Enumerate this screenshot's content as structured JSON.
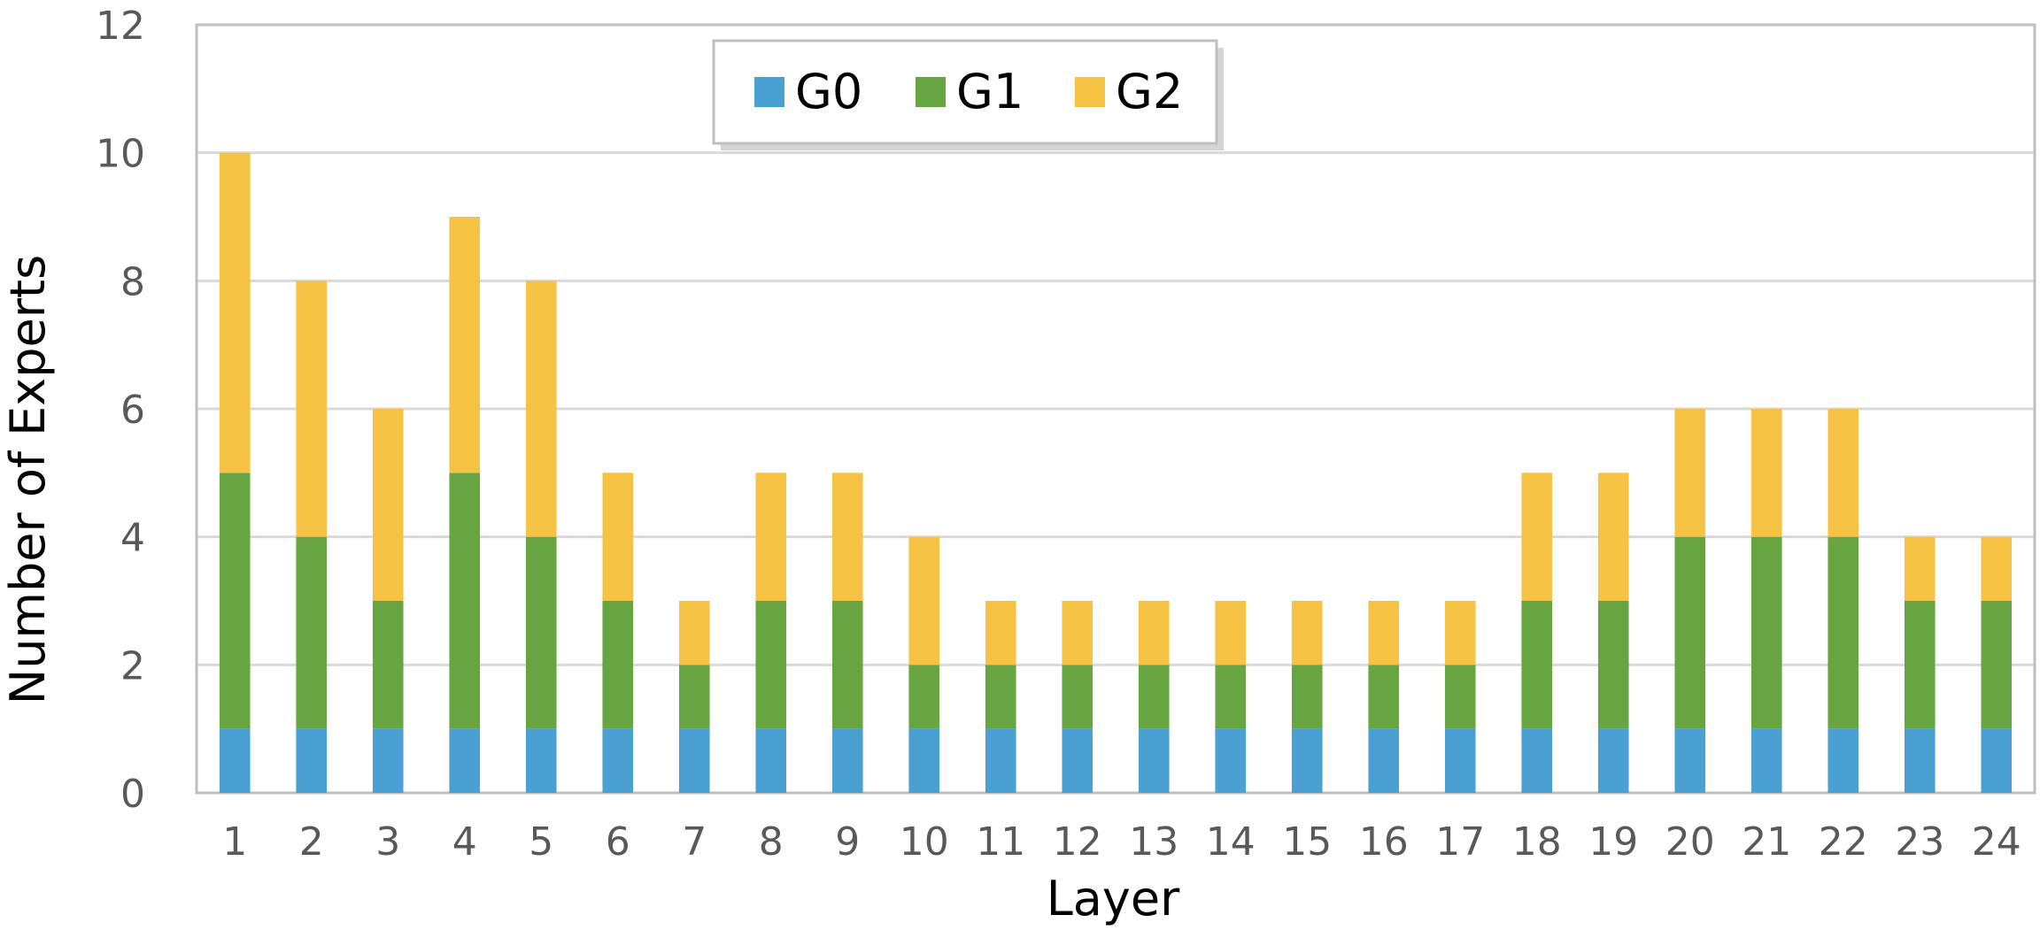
{
  "chart_data": {
    "type": "bar",
    "stacked": true,
    "title": "",
    "xlabel": "Layer",
    "ylabel": "Number of Experts",
    "ylim": [
      0,
      12
    ],
    "yticks": [
      0,
      2,
      4,
      6,
      8,
      10,
      12
    ],
    "grid": true,
    "legend_position": "top-left",
    "categories": [
      "1",
      "2",
      "3",
      "4",
      "5",
      "6",
      "7",
      "8",
      "9",
      "10",
      "11",
      "12",
      "13",
      "14",
      "15",
      "16",
      "17",
      "18",
      "19",
      "20",
      "21",
      "22",
      "23",
      "24"
    ],
    "series": [
      {
        "name": "G0",
        "color": "#4a9fd3",
        "values": [
          1,
          1,
          1,
          1,
          1,
          1,
          1,
          1,
          1,
          1,
          1,
          1,
          1,
          1,
          1,
          1,
          1,
          1,
          1,
          1,
          1,
          1,
          1,
          1
        ]
      },
      {
        "name": "G1",
        "color": "#67a542",
        "values": [
          4,
          3,
          2,
          4,
          3,
          2,
          1,
          2,
          2,
          1,
          1,
          1,
          1,
          1,
          1,
          1,
          1,
          2,
          2,
          3,
          3,
          3,
          2,
          2
        ]
      },
      {
        "name": "G2",
        "color": "#f6c244",
        "values": [
          5,
          4,
          3,
          4,
          4,
          2,
          1,
          2,
          2,
          2,
          1,
          1,
          1,
          1,
          1,
          1,
          1,
          2,
          2,
          2,
          2,
          2,
          1,
          1
        ]
      }
    ]
  }
}
